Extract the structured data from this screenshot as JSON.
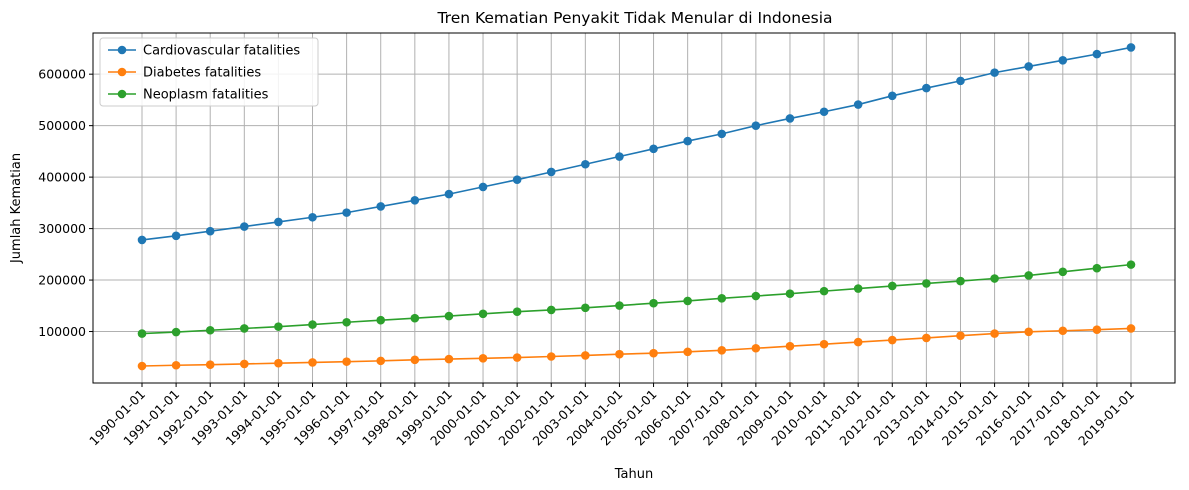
{
  "chart_data": {
    "type": "line",
    "title": "Tren Kematian Penyakit Tidak Menular di Indonesia",
    "xlabel": "Tahun",
    "ylabel": "Jumlah Kematian",
    "x": [
      "1990-01-01",
      "1991-01-01",
      "1992-01-01",
      "1993-01-01",
      "1994-01-01",
      "1995-01-01",
      "1996-01-01",
      "1997-01-01",
      "1998-01-01",
      "1999-01-01",
      "2000-01-01",
      "2001-01-01",
      "2002-01-01",
      "2003-01-01",
      "2004-01-01",
      "2005-01-01",
      "2006-01-01",
      "2007-01-01",
      "2008-01-01",
      "2009-01-01",
      "2010-01-01",
      "2011-01-01",
      "2012-01-01",
      "2013-01-01",
      "2014-01-01",
      "2015-01-01",
      "2016-01-01",
      "2017-01-01",
      "2018-01-01",
      "2019-01-01"
    ],
    "ylim": [
      0,
      680000
    ],
    "yticks": [
      100000,
      200000,
      300000,
      400000,
      500000,
      600000
    ],
    "grid": true,
    "legend_position": "top-left",
    "series": [
      {
        "name": "Cardiovascular fatalities",
        "color": "#1f77b4",
        "values": [
          278000,
          286000,
          295000,
          304000,
          313000,
          322000,
          331000,
          343000,
          355000,
          367000,
          381000,
          395000,
          410000,
          425000,
          440000,
          455000,
          470000,
          484000,
          500000,
          514000,
          527000,
          541000,
          558000,
          573000,
          587000,
          603000,
          615000,
          627000,
          639000,
          652000
        ]
      },
      {
        "name": "Diabetes fatalities",
        "color": "#ff7f0e",
        "values": [
          33000,
          34500,
          35500,
          37000,
          38500,
          40000,
          41500,
          43000,
          45000,
          46500,
          48000,
          49500,
          51500,
          53500,
          56000,
          58000,
          60500,
          63500,
          67500,
          71500,
          75500,
          79500,
          83500,
          87500,
          92000,
          96000,
          99500,
          101500,
          103500,
          106000
        ]
      },
      {
        "name": "Neoplasm fatalities",
        "color": "#2ca02c",
        "values": [
          96000,
          99000,
          102500,
          106000,
          109500,
          113500,
          118000,
          122000,
          126000,
          130000,
          134500,
          138500,
          142000,
          146000,
          150500,
          155000,
          159500,
          164500,
          169000,
          173500,
          178500,
          183500,
          188500,
          193500,
          198000,
          203000,
          209000,
          216000,
          223000,
          230000
        ]
      }
    ]
  }
}
